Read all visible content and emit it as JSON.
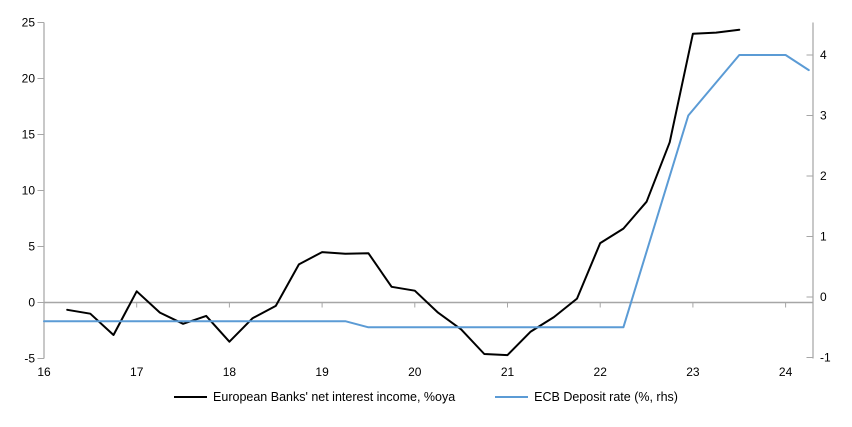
{
  "chart_data": {
    "type": "line",
    "title": "",
    "legend_position": "bottom",
    "background": "#ffffff",
    "axis_color": "#A6A6A6",
    "zero_line": true,
    "gridlines": false,
    "x_axis": {
      "ticks": [
        16,
        17,
        18,
        19,
        20,
        21,
        22,
        23,
        24
      ],
      "range": [
        16,
        24.3
      ]
    },
    "y_axis_left": {
      "ticks": [
        25,
        20,
        15,
        10,
        5,
        0,
        -5
      ],
      "range": [
        -5,
        25
      ]
    },
    "y_axis_right": {
      "ticks": [
        4,
        3,
        2,
        1,
        0,
        -1
      ],
      "range": [
        -1.02,
        4.53
      ]
    },
    "series": [
      {
        "name": "European Banks' net interest income, %oya",
        "axis": "left",
        "color": "#000000",
        "points": [
          [
            16.25,
            -0.65
          ],
          [
            16.5,
            -1.0
          ],
          [
            16.75,
            -2.9
          ],
          [
            17.0,
            1.0
          ],
          [
            17.25,
            -0.9
          ],
          [
            17.5,
            -1.9
          ],
          [
            17.75,
            -1.2
          ],
          [
            18.0,
            -3.5
          ],
          [
            18.25,
            -1.4
          ],
          [
            18.5,
            -0.3
          ],
          [
            18.75,
            3.4
          ],
          [
            19.0,
            4.5
          ],
          [
            19.25,
            4.35
          ],
          [
            19.5,
            4.4
          ],
          [
            19.75,
            1.4
          ],
          [
            20.0,
            1.05
          ],
          [
            20.25,
            -0.9
          ],
          [
            20.5,
            -2.4
          ],
          [
            20.75,
            -4.6
          ],
          [
            21.0,
            -4.7
          ],
          [
            21.25,
            -2.6
          ],
          [
            21.5,
            -1.3
          ],
          [
            21.75,
            0.35
          ],
          [
            22.0,
            5.3
          ],
          [
            22.25,
            6.6
          ],
          [
            22.5,
            9.0
          ],
          [
            22.75,
            14.3
          ],
          [
            23.0,
            24.0
          ],
          [
            23.25,
            24.1
          ],
          [
            23.5,
            24.35
          ]
        ]
      },
      {
        "name": "ECB Deposit rate (%, rhs)",
        "axis": "right",
        "color": "#5B9BD5",
        "points": [
          [
            16.0,
            -0.4
          ],
          [
            19.25,
            -0.4
          ],
          [
            19.5,
            -0.5
          ],
          [
            22.25,
            -0.5
          ],
          [
            22.95,
            3.0
          ],
          [
            23.5,
            4.0
          ],
          [
            24.0,
            4.0
          ],
          [
            24.25,
            3.75
          ]
        ]
      }
    ]
  }
}
